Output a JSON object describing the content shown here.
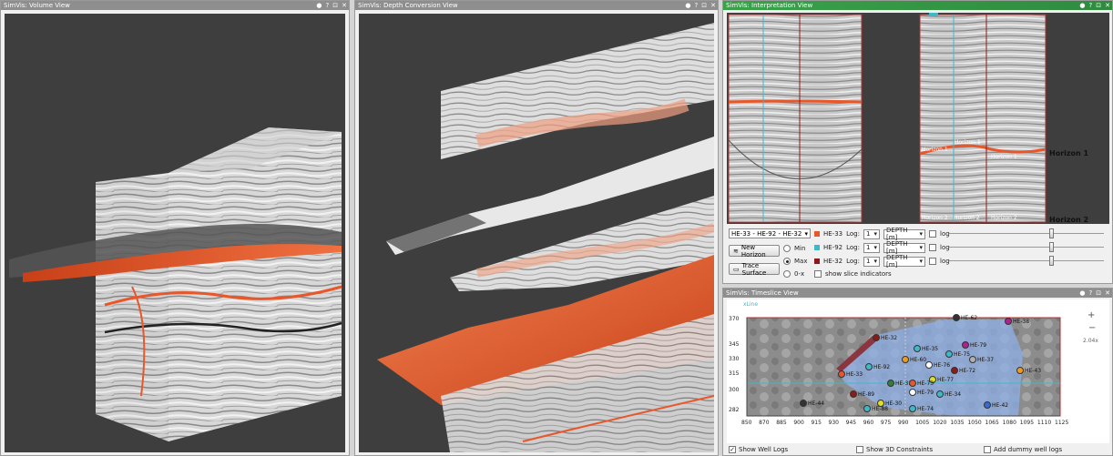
{
  "panels": {
    "volume": {
      "title": "SimVis: Volume View"
    },
    "depth": {
      "title": "SimVis: Depth Conversion View"
    },
    "interp": {
      "title": "SimVis: Interpretation View"
    },
    "timeslice": {
      "title": "SimVis: Timeslice View"
    }
  },
  "titlebar_buttons": {
    "pin": "●",
    "help": "?",
    "float": "⊡",
    "close": "✕"
  },
  "interp": {
    "horizon1_label": "Horizon 1",
    "horizon2_label": "Horizon 2",
    "small_h1_a": "Horizon 1",
    "small_h1_b": "Horizon 1",
    "small_h1_c": "Horizon 1",
    "small_h2_a": "Horizon 2",
    "small_h2_b": "Horizon 2",
    "small_h2_c": "Horizon 2",
    "well_combo": "HE-33 - HE-92 - HE-32",
    "new_horizon": "New Horizon",
    "trace_surface": "Trace Surface",
    "radio_min": "Min",
    "radio_max": "Max",
    "radio_0x": "0-x",
    "show_slice": "show slice indicators",
    "log_rows": [
      {
        "well": "HE-33",
        "color": "#e8562a",
        "log_label": "Log:",
        "log_value": "1",
        "depth": "DEPTH [m]",
        "log": "log"
      },
      {
        "well": "HE-92",
        "color": "#3fb8c8",
        "log_label": "Log:",
        "log_value": "1",
        "depth": "DEPTH [m]",
        "log": "log"
      },
      {
        "well": "HE-32",
        "color": "#8b1a1a",
        "log_label": "Log:",
        "log_value": "1",
        "depth": "DEPTH [m]",
        "log": "log"
      }
    ]
  },
  "timeslice": {
    "xline_label": "xLine",
    "inline_label": "inLine",
    "zoom_value": "2.04x",
    "y_ticks": [
      "370",
      "345",
      "330",
      "315",
      "300",
      "282"
    ],
    "x_ticks": [
      "850",
      "870",
      "885",
      "900",
      "915",
      "930",
      "945",
      "960",
      "975",
      "990",
      "1005",
      "1020",
      "1035",
      "1050",
      "1065",
      "1080",
      "1095",
      "1110",
      "1125"
    ],
    "wells": [
      {
        "name": "HE-62",
        "color": "#333333"
      },
      {
        "name": "HE-38",
        "color": "#b02090"
      },
      {
        "name": "HE-32",
        "color": "#8b1a1a"
      },
      {
        "name": "HE-35",
        "color": "#3fb8c8"
      },
      {
        "name": "HE-79",
        "color": "#b02090"
      },
      {
        "name": "HE-75",
        "color": "#3fb8c8"
      },
      {
        "name": "HE-60",
        "color": "#f09a20"
      },
      {
        "name": "HE-76",
        "color": "#ffffff"
      },
      {
        "name": "HE-37",
        "color": "#b0b0b0"
      },
      {
        "name": "HE-92",
        "color": "#3fb8c8"
      },
      {
        "name": "HE-72",
        "color": "#8b1a1a"
      },
      {
        "name": "HE-43",
        "color": "#f09a20"
      },
      {
        "name": "HE-33",
        "color": "#e8562a"
      },
      {
        "name": "HE-77",
        "color": "#e0e020"
      },
      {
        "name": "HE-31",
        "color": "#3a7a3a"
      },
      {
        "name": "HE-73",
        "color": "#e8562a"
      },
      {
        "name": "HE-89",
        "color": "#8b1a1a"
      },
      {
        "name": "HE-79",
        "color": "#ffffff"
      },
      {
        "name": "HE-34",
        "color": "#3fb8c8"
      },
      {
        "name": "HE-44",
        "color": "#333333"
      },
      {
        "name": "HE-30",
        "color": "#e0e020"
      },
      {
        "name": "HE-88",
        "color": "#3fb8c8"
      },
      {
        "name": "HE-74",
        "color": "#3fb8c8"
      },
      {
        "name": "HE-42",
        "color": "#3a6ad0"
      }
    ],
    "status": {
      "show_well_logs": "Show Well Logs",
      "show_3d": "Show 3D Constraints",
      "add_dummy": "Add dummy well logs"
    }
  },
  "colors": {
    "accent_orange": "#e8562a",
    "cyan": "#3fb8c8",
    "frame_red": "#b03030"
  }
}
